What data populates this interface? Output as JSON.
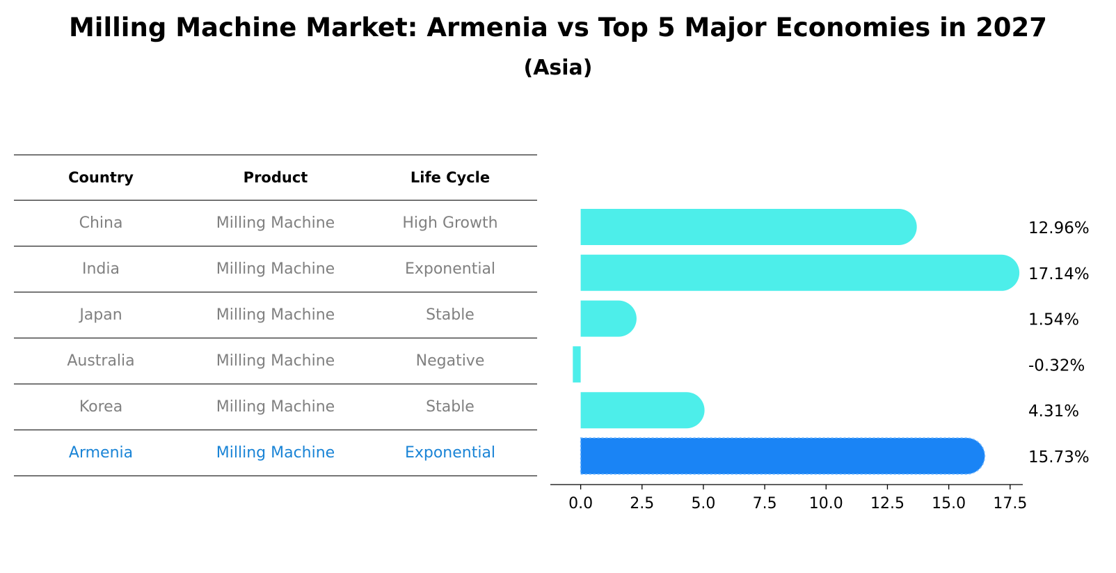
{
  "title": "Milling Machine Market: Armenia vs Top 5 Major Economies in 2027",
  "subtitle": "(Asia)",
  "table": {
    "headers": [
      "Country",
      "Product",
      "Life Cycle"
    ],
    "rows": [
      [
        "China",
        "Milling Machine",
        "High Growth"
      ],
      [
        "India",
        "Milling Machine",
        "Exponential"
      ],
      [
        "Japan",
        "Milling Machine",
        "Stable"
      ],
      [
        "Australia",
        "Milling Machine",
        "Negative"
      ],
      [
        "Korea",
        "Milling Machine",
        "Stable"
      ],
      [
        "Armenia",
        "Milling Machine",
        "Exponential"
      ]
    ],
    "highlight_row": 5
  },
  "colors": {
    "bar": "#4deeea",
    "highlight": "#1a84f5",
    "highlight_text": "#1a84d6",
    "table_text": "#808080"
  },
  "chart_data": {
    "type": "bar",
    "orientation": "horizontal",
    "categories": [
      "China",
      "India",
      "Japan",
      "Australia",
      "Korea",
      "Armenia"
    ],
    "values": [
      12.96,
      17.14,
      1.54,
      -0.32,
      4.31,
      15.73
    ],
    "value_labels": [
      "12.96%",
      "17.14%",
      "1.54%",
      "-0.32%",
      "4.31%",
      "15.73%"
    ],
    "xlim": [
      -1.2,
      18.0
    ],
    "xticks": [
      0.0,
      2.5,
      5.0,
      7.5,
      10.0,
      12.5,
      15.0,
      17.5
    ],
    "xtick_labels": [
      "0.0",
      "2.5",
      "5.0",
      "7.5",
      "10.0",
      "12.5",
      "15.0",
      "17.5"
    ],
    "highlight_index": 5,
    "grid": false
  }
}
